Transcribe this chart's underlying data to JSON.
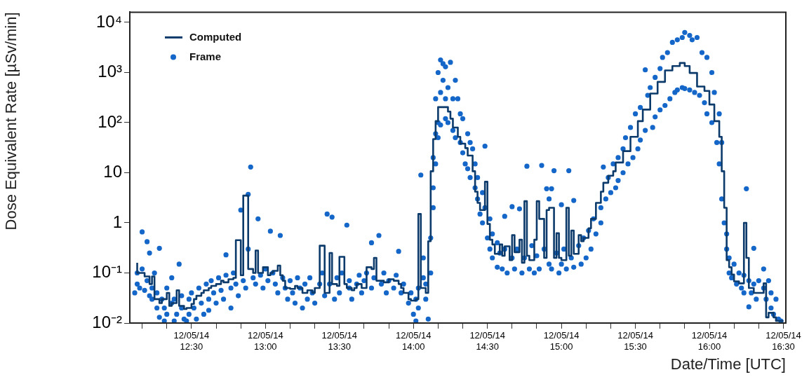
{
  "chart_data": {
    "type": "step",
    "xlabel": "Date/Time [UTC]",
    "ylabel": "Dose Equivalent Rate [µSv/min]",
    "log": "y",
    "legend": "top left",
    "grid": false,
    "xlim": [
      "--12-05T12:05",
      "--12-05T16:31"
    ],
    "ylim": [
      0.01,
      16000
    ],
    "xticks": [
      {
        "value": "--12-05T12:10",
        "label": null
      },
      {
        "value": "--12-05T12:20",
        "label": null
      },
      {
        "value": "--12-05T12:30",
        "label": "12/05/14\n12:30"
      },
      {
        "value": "--12-05T12:40",
        "label": null
      },
      {
        "value": "--12-05T12:50",
        "label": null
      },
      {
        "value": "--12-05T13:00",
        "label": "12/05/14\n13:00"
      },
      {
        "value": "--12-05T13:10",
        "label": null
      },
      {
        "value": "--12-05T13:20",
        "label": null
      },
      {
        "value": "--12-05T13:30",
        "label": "12/05/14\n13:30"
      },
      {
        "value": "--12-05T13:40",
        "label": null
      },
      {
        "value": "--12-05T13:50",
        "label": null
      },
      {
        "value": "--12-05T14:00",
        "label": "12/05/14\n14:00"
      },
      {
        "value": "--12-05T14:10",
        "label": null
      },
      {
        "value": "--12-05T14:20",
        "label": null
      },
      {
        "value": "--12-05T14:30",
        "label": "12/05/14\n14:30"
      },
      {
        "value": "--12-05T14:40",
        "label": null
      },
      {
        "value": "--12-05T14:50",
        "label": null
      },
      {
        "value": "--12-05T15:00",
        "label": "12/05/14\n15:00"
      },
      {
        "value": "--12-05T15:10",
        "label": null
      },
      {
        "value": "--12-05T15:20",
        "label": null
      },
      {
        "value": "--12-05T15:30",
        "label": "12/05/14\n15:30"
      },
      {
        "value": "--12-05T15:40",
        "label": null
      },
      {
        "value": "--12-05T15:50",
        "label": null
      },
      {
        "value": "--12-05T16:00",
        "label": "12/05/14\n16:00"
      },
      {
        "value": "--12-05T16:10",
        "label": null
      },
      {
        "value": "--12-05T16:20",
        "label": null
      },
      {
        "value": "--12-05T16:30",
        "label": "12/05/14\n16:30"
      }
    ],
    "yticks": [
      {
        "value": 0.01,
        "label": "10⁻²"
      },
      {
        "value": 0.1,
        "label": "10⁻¹"
      },
      1,
      10,
      {
        "value": 100,
        "label": "10²"
      },
      {
        "value": 1000,
        "label": "10³"
      },
      {
        "value": 10000,
        "label": "10⁴"
      }
    ],
    "series": [
      {
        "name": "Computed",
        "type": "step",
        "color": "#0b3a6b",
        "line_style": "solid",
        "marker": "none",
        "x": [
          "--12-05T12:08",
          "--12-05T12:10",
          "--12-05T12:11",
          "--12-05T12:13",
          "--12-05T12:14",
          "--12-05T12:15",
          "--12-05T12:17",
          "--12-05T12:18",
          "--12-05T12:20",
          "--12-05T12:21",
          "--12-05T12:22",
          "--12-05T12:24",
          "--12-05T12:25",
          "--12-05T12:27",
          "--12-05T12:28",
          "--12-05T12:30",
          "--12-05T12:31",
          "--12-05T12:32",
          "--12-05T12:34",
          "--12-05T12:35",
          "--12-05T12:37",
          "--12-05T12:38",
          "--12-05T12:40",
          "--12-05T12:42",
          "--12-05T12:43",
          "--12-05T12:45",
          "--12-05T12:47",
          "--12-05T12:48",
          "--12-05T12:50",
          "--12-05T12:51",
          "--12-05T12:53",
          "--12-05T12:55",
          "--12-05T12:56",
          "--12-05T12:57",
          "--12-05T12:59",
          "--12-05T13:01",
          "--12-05T13:02",
          "--12-05T13:03",
          "--12-05T13:05",
          "--12-05T13:06",
          "--12-05T13:07",
          "--12-05T13:08",
          "--12-05T13:10",
          "--12-05T13:12",
          "--12-05T13:13",
          "--12-05T13:15",
          "--12-05T13:17",
          "--12-05T13:19",
          "--12-05T13:20",
          "--12-05T13:22",
          "--12-05T13:24",
          "--12-05T13:26",
          "--12-05T13:27",
          "--12-05T13:29",
          "--12-05T13:30",
          "--12-05T13:32",
          "--12-05T13:33",
          "--12-05T13:35",
          "--12-05T13:36",
          "--12-05T13:37",
          "--12-05T13:39",
          "--12-05T13:41",
          "--12-05T13:43",
          "--12-05T13:44",
          "--12-05T13:45",
          "--12-05T13:46",
          "--12-05T13:48",
          "--12-05T13:50",
          "--12-05T13:52",
          "--12-05T13:54",
          "--12-05T13:55",
          "--12-05T13:56",
          "--12-05T13:58",
          "--12-05T13:59",
          "--12-05T14:01",
          "--12-05T14:02",
          "--12-05T14:03",
          "--12-05T14:05",
          "--12-05T14:06",
          "--12-05T14:07",
          "--12-05T14:08",
          "--12-05T14:09",
          "--12-05T14:10",
          "--12-05T14:11",
          "--12-05T14:14",
          "--12-05T14:15",
          "--12-05T14:16",
          "--12-05T14:18",
          "--12-05T14:19",
          "--12-05T14:21",
          "--12-05T14:22",
          "--12-05T14:24",
          "--12-05T14:25",
          "--12-05T14:26",
          "--12-05T14:27",
          "--12-05T14:29",
          "--12-05T14:30",
          "--12-05T14:31",
          "--12-05T14:32",
          "--12-05T14:33",
          "--12-05T14:35",
          "--12-05T14:36",
          "--12-05T14:37",
          "--12-05T14:39",
          "--12-05T14:40",
          "--12-05T14:41",
          "--12-05T14:43",
          "--12-05T14:44",
          "--12-05T14:45",
          "--12-05T14:46",
          "--12-05T14:47",
          "--12-05T14:49",
          "--12-05T14:50",
          "--12-05T14:51",
          "--12-05T14:53",
          "--12-05T14:54",
          "--12-05T14:55",
          "--12-05T14:57",
          "--12-05T14:58",
          "--12-05T14:59",
          "--12-05T15:00",
          "--12-05T15:02",
          "--12-05T15:03",
          "--12-05T15:04",
          "--12-05T15:05",
          "--12-05T15:07",
          "--12-05T15:08",
          "--12-05T15:09",
          "--12-05T15:11",
          "--12-05T15:12",
          "--12-05T15:14",
          "--12-05T15:16",
          "--12-05T15:17",
          "--12-05T15:19",
          "--12-05T15:21",
          "--12-05T15:22",
          "--12-05T15:25",
          "--12-05T15:28",
          "--12-05T15:31",
          "--12-05T15:33",
          "--12-05T15:36",
          "--12-05T15:39",
          "--12-05T15:42",
          "--12-05T15:45",
          "--12-05T15:48",
          "--12-05T15:50",
          "--12-05T15:52",
          "--12-05T15:55",
          "--12-05T15:58",
          "--12-05T16:00",
          "--12-05T16:02",
          "--12-05T16:04",
          "--12-05T16:05",
          "--12-05T16:06",
          "--12-05T16:07",
          "--12-05T16:08",
          "--12-05T16:09",
          "--12-05T16:10",
          "--12-05T16:12",
          "--12-05T16:14",
          "--12-05T16:15",
          "--12-05T16:16",
          "--12-05T16:18",
          "--12-05T16:20",
          "--12-05T16:22",
          "--12-05T16:23",
          "--12-05T16:24",
          "--12-05T16:26",
          "--12-05T16:27",
          "--12-05T16:29",
          "--12-05T16:30"
        ],
        "values": [
          0.16,
          0.1,
          0.1,
          0.085,
          0.06,
          0.085,
          0.03,
          0.025,
          0.03,
          0.04,
          0.022,
          0.025,
          0.045,
          0.022,
          0.019,
          0.02,
          0.024,
          0.03,
          0.035,
          0.04,
          0.045,
          0.05,
          0.055,
          0.06,
          0.07,
          0.065,
          0.075,
          0.08,
          0.45,
          0.09,
          3.5,
          0.12,
          0.1,
          0.28,
          0.1,
          0.13,
          0.09,
          0.1,
          0.11,
          0.14,
          0.09,
          0.07,
          0.05,
          0.048,
          0.055,
          0.05,
          0.04,
          0.045,
          0.04,
          0.05,
          0.35,
          0.04,
          0.25,
          0.06,
          0.055,
          0.21,
          0.06,
          0.05,
          0.045,
          0.05,
          0.06,
          0.05,
          0.13,
          0.12,
          0.2,
          0.07,
          0.07,
          0.065,
          0.075,
          0.07,
          0.06,
          0.05,
          0.04,
          0.03,
          0.028,
          0.03,
          1.5,
          0.05,
          0.04,
          0.43,
          10.7,
          47,
          107,
          204,
          204,
          166,
          120,
          80,
          52,
          38,
          31,
          22,
          10.7,
          4.2,
          2.5,
          1.8,
          6.6,
          0.95,
          0.46,
          0.37,
          0.24,
          0.37,
          0.22,
          0.34,
          0.18,
          0.57,
          0.26,
          0.46,
          0.16,
          2.7,
          0.22,
          0.18,
          0.46,
          2.7,
          1.2,
          0.2,
          1.8,
          2,
          0.2,
          0.62,
          0.2,
          0.18,
          2,
          0.22,
          0.7,
          0.24,
          0.57,
          0.43,
          0.5,
          0.78,
          1.2,
          2.5,
          4.2,
          6.3,
          8.7,
          10.7,
          16,
          27,
          52,
          107,
          182,
          380,
          650,
          1100,
          1350,
          1550,
          1350,
          980,
          525,
          430,
          230,
          107,
          52,
          10.7,
          2,
          0.18,
          0.13,
          0.093,
          0.068,
          0.062,
          1,
          0.2,
          0.05,
          0.04,
          0.04,
          0.062,
          0.013,
          0.016,
          0.013,
          0.011,
          0.011
        ]
      },
      {
        "name": "Frame",
        "type": "scatter",
        "color": "#1466c8",
        "marker": "circle",
        "x": [
          "--12-05T12:07",
          "--12-05T12:08",
          "--12-05T12:08",
          "--12-05T12:09",
          "--12-05T12:10",
          "--12-05T12:10",
          "--12-05T12:11",
          "--12-05T12:12",
          "--12-05T12:12",
          "--12-05T12:13",
          "--12-05T12:13",
          "--12-05T12:14",
          "--12-05T12:14",
          "--12-05T12:15",
          "--12-05T12:16",
          "--12-05T12:16",
          "--12-05T12:17",
          "--12-05T12:17",
          "--12-05T12:18",
          "--12-05T12:19",
          "--12-05T12:19",
          "--12-05T12:20",
          "--12-05T12:20",
          "--12-05T12:22",
          "--12-05T12:22",
          "--12-05T12:23",
          "--12-05T12:23",
          "--12-05T12:24",
          "--12-05T12:25",
          "--12-05T12:26",
          "--12-05T12:26",
          "--12-05T12:27",
          "--12-05T12:28",
          "--12-05T12:29",
          "--12-05T12:29",
          "--12-05T12:30",
          "--12-05T12:31",
          "--12-05T12:32",
          "--12-05T12:33",
          "--12-05T12:34",
          "--12-05T12:35",
          "--12-05T12:36",
          "--12-05T12:37",
          "--12-05T12:37",
          "--12-05T12:38",
          "--12-05T12:39",
          "--12-05T12:40",
          "--12-05T12:41",
          "--12-05T12:42",
          "--12-05T12:43",
          "--12-05T12:44",
          "--12-05T12:44",
          "--12-05T12:46",
          "--12-05T12:46",
          "--12-05T12:47",
          "--12-05T12:48",
          "--12-05T12:49",
          "--12-05T12:50",
          "--12-05T12:51",
          "--12-05T12:52",
          "--12-05T12:53",
          "--12-05T12:53",
          "--12-05T12:54",
          "--12-05T12:55",
          "--12-05T12:56",
          "--12-05T12:57",
          "--12-05T12:58",
          "--12-05T12:59",
          "--12-05T13:00",
          "--12-05T13:01",
          "--12-05T13:02",
          "--12-05T13:03",
          "--12-05T13:04",
          "--12-05T13:05",
          "--12-05T13:06",
          "--12-05T13:07",
          "--12-05T13:08",
          "--12-05T13:09",
          "--12-05T13:10",
          "--12-05T13:11",
          "--12-05T13:12",
          "--12-05T13:13",
          "--12-05T13:14",
          "--12-05T13:15",
          "--12-05T13:16",
          "--12-05T13:17",
          "--12-05T13:18",
          "--12-05T13:19",
          "--12-05T13:20",
          "--12-05T13:22",
          "--12-05T13:23",
          "--12-05T13:24",
          "--12-05T13:25",
          "--12-05T13:26",
          "--12-05T13:27",
          "--12-05T13:28",
          "--12-05T13:29",
          "--12-05T13:30",
          "--12-05T13:31",
          "--12-05T13:33",
          "--12-05T13:34",
          "--12-05T13:34",
          "--12-05T13:35",
          "--12-05T13:37",
          "--12-05T13:38",
          "--12-05T13:39",
          "--12-05T13:40",
          "--12-05T13:41",
          "--12-05T13:43",
          "--12-05T13:43",
          "--12-05T13:44",
          "--12-05T13:46",
          "--12-05T13:47",
          "--12-05T13:48",
          "--12-05T13:49",
          "--12-05T13:50",
          "--12-05T13:52",
          "--12-05T13:53",
          "--12-05T13:54",
          "--12-05T13:55",
          "--12-05T13:56",
          "--12-05T13:58",
          "--12-05T13:59",
          "--12-05T14:00",
          "--12-05T14:01",
          "--12-05T14:01",
          "--12-05T14:02",
          "--12-05T14:02",
          "--12-05T14:03",
          "--12-05T14:04",
          "--12-05T14:04",
          "--12-05T14:05",
          "--12-05T14:05",
          "--12-05T14:06",
          "--12-05T14:07",
          "--12-05T14:07",
          "--12-05T14:08",
          "--12-05T14:08",
          "--12-05T14:08",
          "--12-05T14:09",
          "--12-05T14:09",
          "--12-05T14:09",
          "--12-05T14:10",
          "--12-05T14:10",
          "--12-05T14:10",
          "--12-05T14:11",
          "--12-05T14:11",
          "--12-05T14:11",
          "--12-05T14:12",
          "--12-05T14:12",
          "--12-05T14:13",
          "--12-05T14:13",
          "--12-05T14:13",
          "--12-05T14:14",
          "--12-05T14:14",
          "--12-05T14:15",
          "--12-05T14:16",
          "--12-05T14:16",
          "--12-05T14:17",
          "--12-05T14:17",
          "--12-05T14:18",
          "--12-05T14:19",
          "--12-05T14:19",
          "--12-05T14:20",
          "--12-05T14:20",
          "--12-05T14:21",
          "--12-05T14:22",
          "--12-05T14:22",
          "--12-05T14:23",
          "--12-05T14:23",
          "--12-05T14:24",
          "--12-05T14:25",
          "--12-05T14:25",
          "--12-05T14:26",
          "--12-05T14:26",
          "--12-05T14:27",
          "--12-05T14:28",
          "--12-05T14:28",
          "--12-05T14:29",
          "--12-05T14:29",
          "--12-05T14:30",
          "--12-05T14:31",
          "--12-05T14:31",
          "--12-05T14:32",
          "--12-05T14:32",
          "--12-05T14:34",
          "--12-05T14:34",
          "--12-05T14:35",
          "--12-05T14:36",
          "--12-05T14:37",
          "--12-05T14:37",
          "--12-05T14:38",
          "--12-05T14:40",
          "--12-05T14:40",
          "--12-05T14:41",
          "--12-05T14:42",
          "--12-05T14:43",
          "--12-05T14:44",
          "--12-05T14:45",
          "--12-05T14:46",
          "--12-05T14:47",
          "--12-05T14:48",
          "--12-05T14:49",
          "--12-05T14:50",
          "--12-05T14:51",
          "--12-05T14:52",
          "--12-05T14:53",
          "--12-05T14:54",
          "--12-05T14:55",
          "--12-05T14:55",
          "--12-05T14:56",
          "--12-05T14:56",
          "--12-05T14:57",
          "--12-05T14:58",
          "--12-05T14:59",
          "--12-05T15:00",
          "--12-05T15:00",
          "--12-05T15:01",
          "--12-05T15:02",
          "--12-05T15:03",
          "--12-05T15:04",
          "--12-05T15:05",
          "--12-05T15:05",
          "--12-05T15:07",
          "--12-05T15:08",
          "--12-05T15:09",
          "--12-05T15:10",
          "--12-05T15:11",
          "--12-05T15:12",
          "--12-05T15:13",
          "--12-05T15:14",
          "--12-05T15:16",
          "--12-05T15:16",
          "--12-05T15:17",
          "--12-05T15:18",
          "--12-05T15:19",
          "--12-05T15:20",
          "--12-05T15:21",
          "--12-05T15:22",
          "--12-05T15:23",
          "--12-05T15:23",
          "--12-05T15:25",
          "--12-05T15:25",
          "--12-05T15:26",
          "--12-05T15:27",
          "--12-05T15:28",
          "--12-05T15:29",
          "--12-05T15:30",
          "--12-05T15:31",
          "--12-05T15:32",
          "--12-05T15:32",
          "--12-05T15:34",
          "--12-05T15:34",
          "--12-05T15:35",
          "--12-05T15:36",
          "--12-05T15:37",
          "--12-05T15:38",
          "--12-05T15:38",
          "--12-05T15:40",
          "--12-05T15:40",
          "--12-05T15:41",
          "--12-05T15:42",
          "--12-05T15:43",
          "--12-05T15:44",
          "--12-05T15:45",
          "--12-05T15:46",
          "--12-05T15:47",
          "--12-05T15:47",
          "--12-05T15:49",
          "--12-05T15:49",
          "--12-05T15:50",
          "--12-05T15:50",
          "--12-05T15:52",
          "--12-05T15:52",
          "--12-05T15:53",
          "--12-05T15:54",
          "--12-05T15:55",
          "--12-05T15:56",
          "--12-05T15:57",
          "--12-05T15:58",
          "--12-05T15:59",
          "--12-05T15:59",
          "--12-05T16:01",
          "--12-05T16:01",
          "--12-05T16:02",
          "--12-05T16:03",
          "--12-05T16:04",
          "--12-05T16:04",
          "--12-05T16:05",
          "--12-05T16:05",
          "--12-05T16:06",
          "--12-05T16:07",
          "--12-05T16:07",
          "--12-05T16:08",
          "--12-05T16:08",
          "--12-05T16:09",
          "--12-05T16:10",
          "--12-05T16:11",
          "--12-05T16:12",
          "--12-05T16:13",
          "--12-05T16:14",
          "--12-05T16:14",
          "--12-05T16:15",
          "--12-05T16:16",
          "--12-05T16:16",
          "--12-05T16:17",
          "--12-05T16:18",
          "--12-05T16:18",
          "--12-05T16:19",
          "--12-05T16:20",
          "--12-05T16:22",
          "--12-05T16:22",
          "--12-05T16:23",
          "--12-05T16:24",
          "--12-05T16:25",
          "--12-05T16:25",
          "--12-05T16:26",
          "--12-05T16:27",
          "--12-05T16:28",
          "--12-05T16:29"
        ],
        "values": [
          0.04,
          0.06,
          0.1,
          0.05,
          0.66,
          0.12,
          0.045,
          0.42,
          0.07,
          0.035,
          0.25,
          0.05,
          0.03,
          0.1,
          0.02,
          0.04,
          0.31,
          0.013,
          0.03,
          0.011,
          0.02,
          0.05,
          0.015,
          0.08,
          0.025,
          0.011,
          0.03,
          0.015,
          0.15,
          0.02,
          0.035,
          0.012,
          0.011,
          0.03,
          0.015,
          0.04,
          0.02,
          0.012,
          0.05,
          0.025,
          0.015,
          0.06,
          0.03,
          0.018,
          0.07,
          0.04,
          0.025,
          0.08,
          0.045,
          0.03,
          0.23,
          0.09,
          0.05,
          0.02,
          0.1,
          0.06,
          0.035,
          1.8,
          0.07,
          0.05,
          3.7,
          0.3,
          13,
          0.08,
          0.06,
          1.2,
          0.09,
          0.05,
          0.12,
          0.07,
          0.68,
          0.1,
          0.06,
          0.04,
          0.56,
          0.08,
          0.05,
          0.03,
          0.07,
          0.04,
          0.025,
          0.08,
          0.05,
          0.02,
          0.06,
          0.03,
          0.08,
          0.04,
          0.025,
          0.06,
          0.1,
          0.035,
          1.5,
          0.06,
          1.3,
          0.03,
          0.08,
          0.04,
          0.1,
          0.9,
          0.05,
          0.07,
          0.03,
          0.06,
          0.09,
          0.04,
          0.07,
          0.1,
          0.4,
          0.05,
          0.08,
          0.56,
          0.06,
          0.1,
          0.04,
          0.07,
          0.05,
          0.09,
          0.27,
          0.04,
          0.06,
          0.025,
          0.04,
          0.015,
          0.03,
          0.011,
          0.05,
          0.02,
          9,
          0.08,
          0.2,
          0.03,
          0.06,
          0.012,
          0.1,
          0.5,
          2,
          5,
          20,
          60,
          300,
          15,
          100,
          1000,
          50,
          400,
          1780,
          90,
          700,
          1500,
          120,
          300,
          1300,
          100,
          500,
          1600,
          70,
          300,
          700,
          50,
          300,
          40,
          150,
          25,
          120,
          15,
          60,
          12,
          40,
          8,
          30,
          5,
          15,
          3,
          8,
          1.5,
          4,
          1,
          34,
          2,
          0.5,
          1.2,
          0.3,
          0.6,
          0.2,
          0.4,
          0.13,
          0.25,
          0.12,
          0.3,
          1.35,
          0.1,
          0.2,
          2.1,
          0.12,
          0.3,
          1.9,
          0.1,
          0.2,
          13.5,
          0.12,
          0.35,
          0.1,
          0.22,
          0.12,
          14,
          0.3,
          4.8,
          0.15,
          3,
          4.8,
          0.12,
          11,
          0.25,
          0.1,
          2.3,
          0.15,
          0.3,
          0.12,
          11,
          0.2,
          2.8,
          0.13,
          0.35,
          0.15,
          0.5,
          0.2,
          0.7,
          0.3,
          1.2,
          0.6,
          2,
          1,
          13,
          3,
          8,
          4,
          15,
          5,
          20,
          7,
          30,
          10,
          50,
          15,
          80,
          20,
          150,
          30,
          200,
          45,
          1130,
          70,
          350,
          500,
          80,
          800,
          130,
          1200,
          180,
          2000,
          220,
          2500,
          300,
          4000,
          400,
          4500,
          450,
          5000,
          500,
          6300,
          480,
          5500,
          450,
          4500,
          400,
          5000,
          350,
          2500,
          250,
          2000,
          150,
          1000,
          100,
          400,
          40,
          150,
          15,
          40,
          3,
          1,
          0.3,
          0.6,
          0.1,
          0.2,
          0.08,
          0.15,
          0.06,
          0.1,
          0.05,
          0.09,
          0.04,
          4.8,
          0.021,
          0.07,
          0.04,
          0.31,
          0.06,
          0.03,
          0.07,
          0.12,
          0.05,
          0.03,
          0.07,
          0.02,
          0.04,
          0.015,
          0.03,
          0.012,
          0.011
        ]
      }
    ]
  }
}
